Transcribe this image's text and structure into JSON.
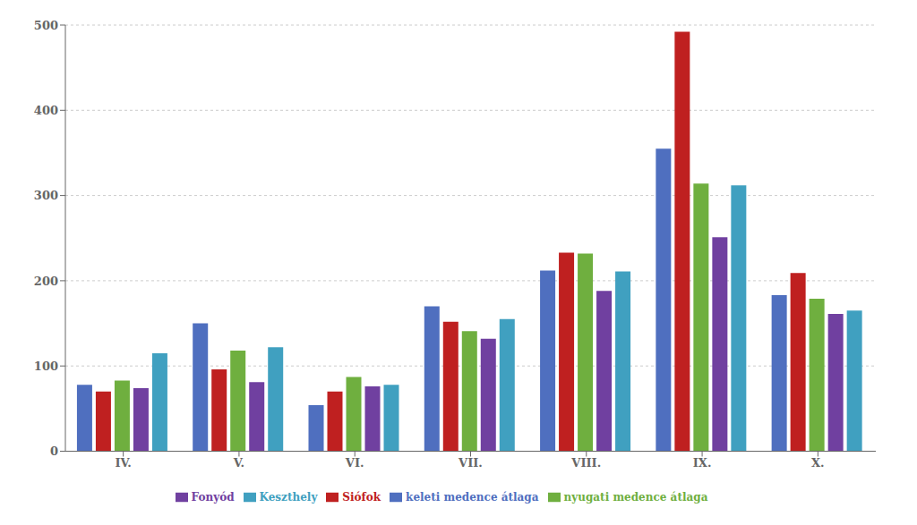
{
  "chart_data": {
    "type": "bar",
    "categories": [
      "IV.",
      "V.",
      "VI.",
      "VII.",
      "VIII.",
      "IX.",
      "X."
    ],
    "series": [
      {
        "name": "keleti medence átlaga",
        "color": "#4F6FBF",
        "values": [
          78,
          150,
          54,
          170,
          212,
          355,
          183
        ]
      },
      {
        "name": "Siófok",
        "color": "#BF2020",
        "values": [
          70,
          96,
          70,
          152,
          233,
          492,
          209
        ]
      },
      {
        "name": "nyugati medence átlaga",
        "color": "#6FAF3F",
        "values": [
          83,
          118,
          87,
          141,
          232,
          314,
          179
        ]
      },
      {
        "name": "Fonyód",
        "color": "#7040A0",
        "values": [
          74,
          81,
          76,
          132,
          188,
          251,
          161
        ]
      },
      {
        "name": "Keszthely",
        "color": "#40A0C0",
        "values": [
          115,
          122,
          78,
          155,
          211,
          312,
          165
        ]
      }
    ],
    "ylim": [
      0,
      500
    ],
    "yticks": [
      0,
      100,
      200,
      300,
      400,
      500
    ],
    "grid": true,
    "legend": "bottom"
  }
}
